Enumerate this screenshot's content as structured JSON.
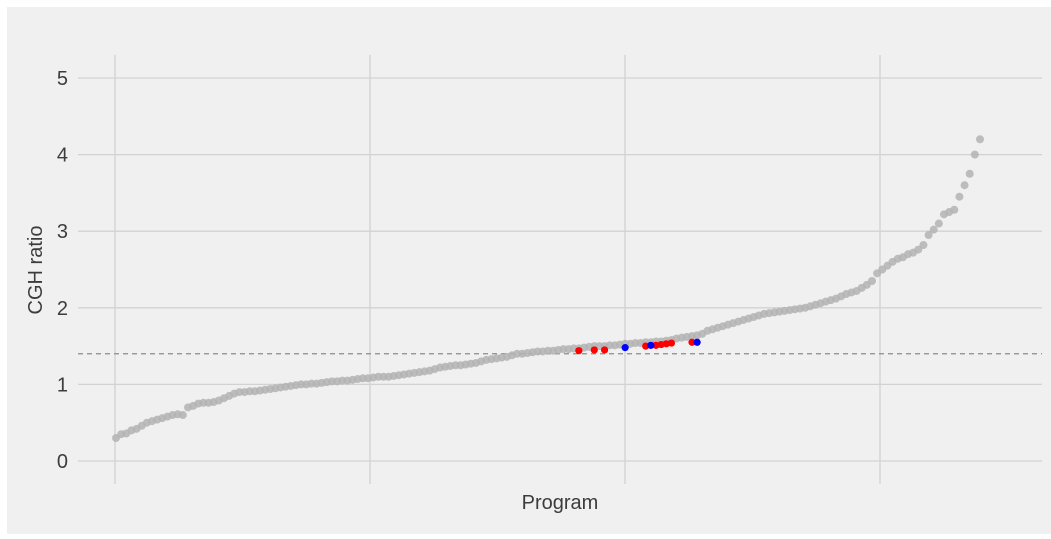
{
  "chart_data": {
    "type": "scatter",
    "title": "",
    "xlabel": "Program",
    "ylabel": "CGH ratio",
    "ylim": [
      -0.3,
      5.3
    ],
    "yticks": [
      0,
      1,
      2,
      3,
      4,
      5
    ],
    "xgrid_count": 4,
    "grid": true,
    "reference_line": {
      "y": 1.4,
      "style": "dashed"
    },
    "colors": {
      "panel_background": "#f0f0f0",
      "grid": "#d2d2d2",
      "points_default": "#b3b3b3",
      "highlight_red": "#ff0000",
      "highlight_blue": "#0000ff",
      "reference_line": "#8c8c8c",
      "text": "#3c3c3c"
    },
    "series": [
      {
        "color_key": "points_default",
        "values": [
          0.3,
          0.35,
          0.36,
          0.4,
          0.42,
          0.46,
          0.5,
          0.52,
          0.54,
          0.56,
          0.58,
          0.6,
          0.61,
          0.6,
          0.7,
          0.72,
          0.75,
          0.76,
          0.76,
          0.77,
          0.79,
          0.82,
          0.85,
          0.88,
          0.9,
          0.9,
          0.91,
          0.91,
          0.92,
          0.93,
          0.94,
          0.95,
          0.96,
          0.97,
          0.98,
          0.99,
          1.0,
          1.0,
          1.01,
          1.01,
          1.02,
          1.03,
          1.04,
          1.04,
          1.05,
          1.05,
          1.06,
          1.07,
          1.08,
          1.08,
          1.09,
          1.1,
          1.1,
          1.1,
          1.11,
          1.12,
          1.13,
          1.14,
          1.15,
          1.16,
          1.17,
          1.18,
          1.2,
          1.22,
          1.23,
          1.24,
          1.25,
          1.25,
          1.26,
          1.27,
          1.28,
          1.3,
          1.32,
          1.33,
          1.34,
          1.35,
          1.36,
          1.38,
          1.4,
          1.4,
          1.41,
          1.42,
          1.43,
          1.43,
          1.44,
          1.44,
          1.45,
          1.46,
          1.46,
          1.47,
          1.47,
          1.48,
          1.49,
          1.5,
          1.5,
          1.5,
          1.51,
          1.51,
          1.52,
          1.53,
          1.53,
          1.54,
          1.54,
          1.55,
          1.55,
          1.56,
          1.56,
          1.57,
          1.58,
          1.6,
          1.61,
          1.62,
          1.63,
          1.64,
          1.66,
          1.7,
          1.72,
          1.74,
          1.76,
          1.78,
          1.8,
          1.82,
          1.84,
          1.86,
          1.88,
          1.9,
          1.92,
          1.93,
          1.94,
          1.95,
          1.96,
          1.97,
          1.98,
          1.99,
          2.0,
          2.02,
          2.04,
          2.06,
          2.08,
          2.1,
          2.12,
          2.15,
          2.18,
          2.2,
          2.22,
          2.26,
          2.3,
          2.35,
          2.45,
          2.5,
          2.55,
          2.6,
          2.64,
          2.66,
          2.7,
          2.72,
          2.76,
          2.82,
          2.95,
          3.02,
          3.1,
          3.22,
          3.25,
          3.28,
          3.45,
          3.6,
          3.75,
          4.0,
          4.2
        ]
      },
      {
        "color_key": "highlight_red",
        "points": [
          [
            90,
            1.44
          ],
          [
            93,
            1.45
          ],
          [
            95,
            1.45
          ],
          [
            103,
            1.5
          ],
          [
            105,
            1.51
          ],
          [
            106,
            1.52
          ],
          [
            107,
            1.53
          ],
          [
            108,
            1.54
          ],
          [
            112,
            1.55
          ]
        ]
      },
      {
        "color_key": "highlight_blue",
        "points": [
          [
            99,
            1.48
          ],
          [
            104,
            1.51
          ],
          [
            113,
            1.55
          ]
        ]
      }
    ]
  }
}
